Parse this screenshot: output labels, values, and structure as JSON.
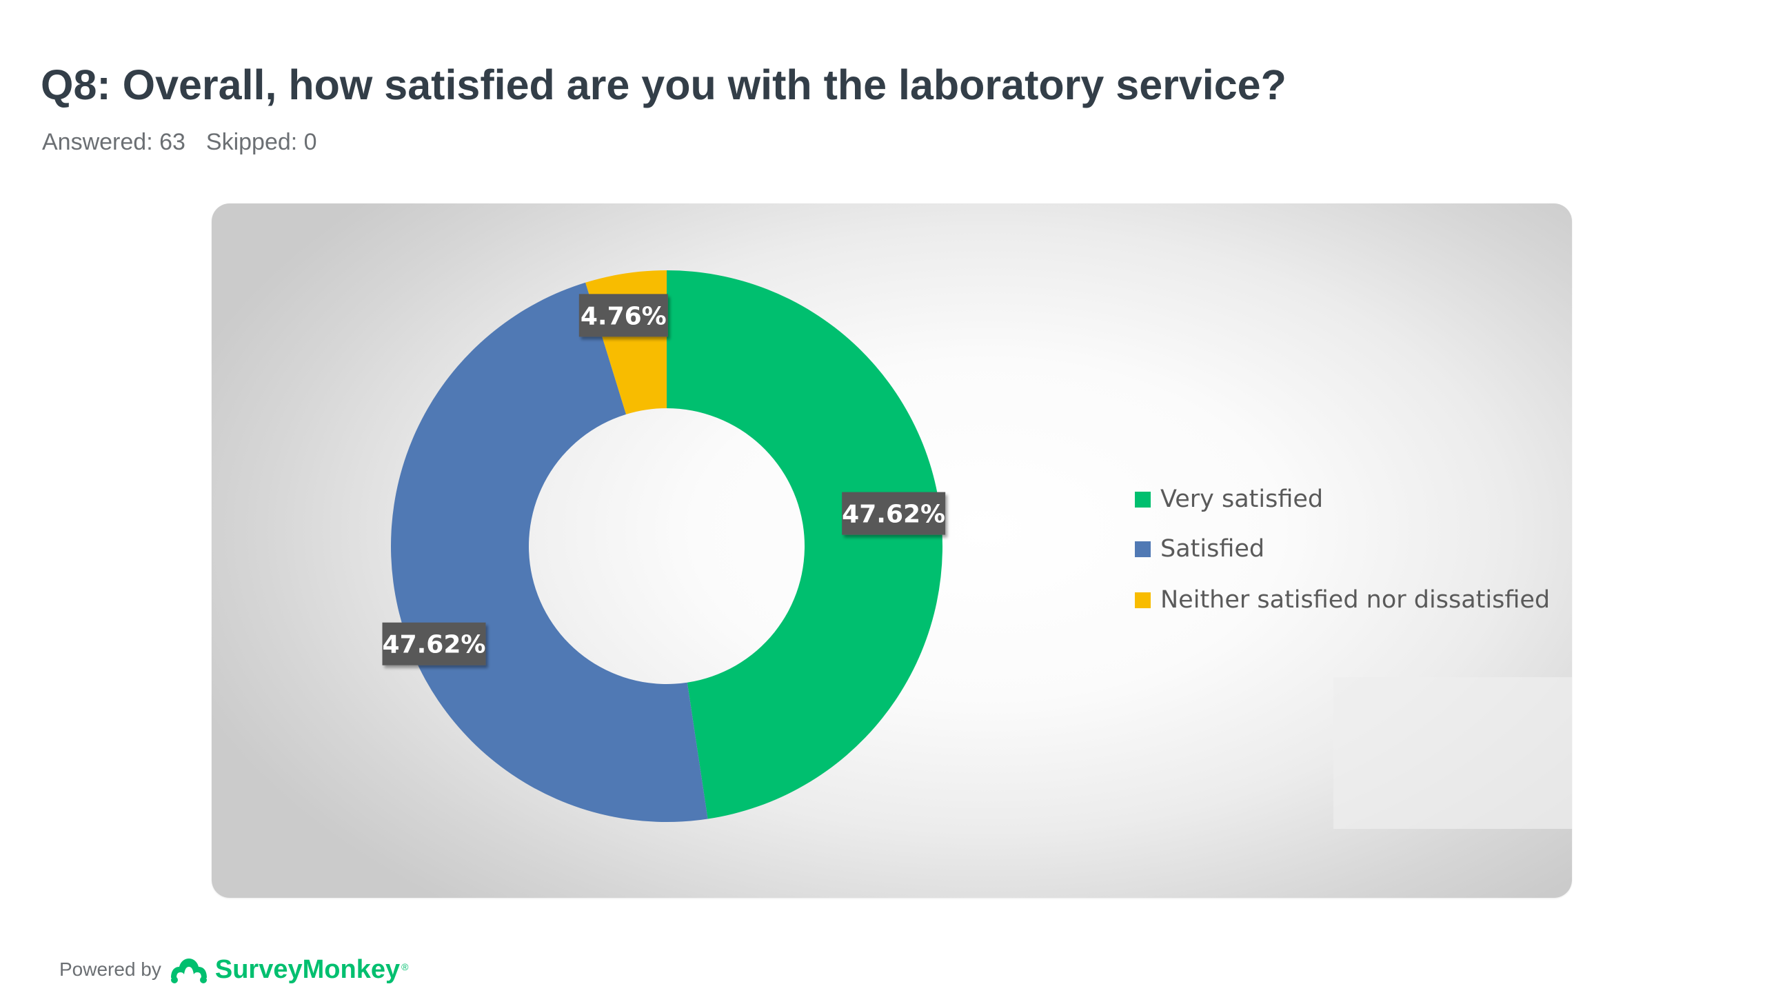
{
  "question": {
    "title": "Q8: Overall, how satisfied are you with the laboratory service?",
    "answered": "Answered: 63",
    "skipped": "Skipped: 0"
  },
  "chart_data": {
    "type": "pie",
    "variant": "donut",
    "categories": [
      "Very satisfied",
      "Satisfied",
      "Neither satisfied nor dissatisfied"
    ],
    "values": [
      47.62,
      47.62,
      4.76
    ],
    "data_labels": [
      "47.62%",
      "47.62%",
      "4.76%"
    ],
    "colors": [
      "#00bf6f",
      "#5079b4",
      "#f8bc00"
    ],
    "legend_position": "right",
    "start_angle": "12 o'clock, clockwise"
  },
  "footer": {
    "powered_by": "Powered by",
    "brand": "SurveyMonkey",
    "brand_mark": "®",
    "brand_color": "#00bf6f",
    "logo_icon": "surveymonkey-logo-icon"
  }
}
